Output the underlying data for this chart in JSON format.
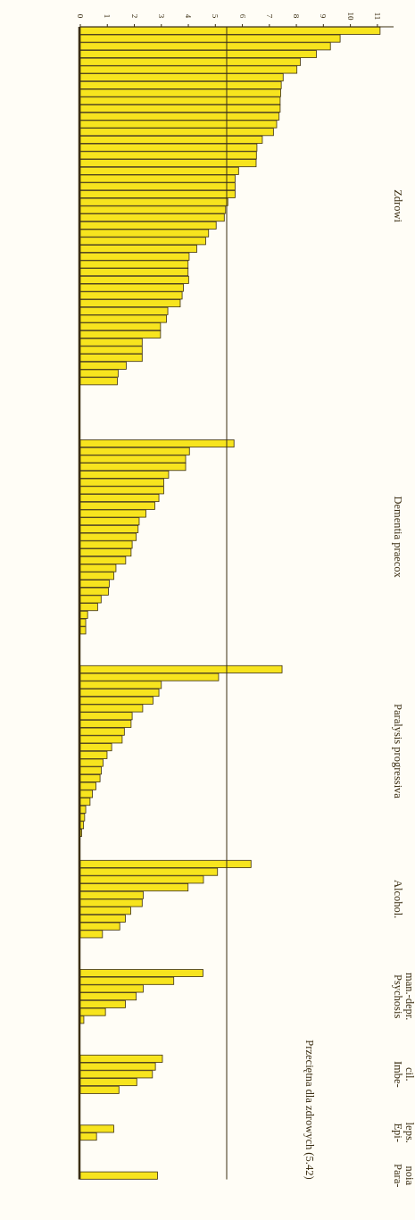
{
  "chart_data": {
    "type": "bar",
    "orientation": "horizontal",
    "stacked": true,
    "xlim": [
      0,
      11.6
    ],
    "xticks": [
      0,
      1,
      2,
      3,
      4,
      5,
      6,
      7,
      8,
      9,
      10,
      11
    ],
    "ref_lines": [
      {
        "axis": "x",
        "value": 5.42,
        "label": "Przeciętna dla zdrowych (5.42)"
      }
    ],
    "categories": [
      null,
      null,
      null,
      null,
      null,
      null,
      null,
      null,
      null,
      null,
      null,
      null,
      null,
      null,
      null,
      null,
      null,
      null,
      null,
      null,
      null,
      null,
      null,
      null,
      null,
      null,
      null,
      null,
      null,
      null,
      null,
      null,
      null,
      null,
      null,
      null,
      null,
      null,
      null,
      null,
      null,
      null,
      null,
      null,
      null,
      null,
      null,
      null,
      null,
      null,
      null,
      null,
      null,
      null,
      null,
      null,
      null,
      null,
      null,
      null,
      null,
      null,
      null,
      null,
      null,
      null,
      null,
      null,
      null,
      null,
      null,
      null,
      null,
      null,
      null,
      null,
      null,
      null,
      null,
      null,
      null,
      null,
      null,
      null,
      null,
      null,
      null,
      null,
      null,
      null,
      null,
      null,
      null,
      null,
      null,
      null,
      null,
      null,
      null,
      null,
      null,
      null,
      null,
      null,
      null,
      null,
      null,
      null,
      null,
      null,
      null,
      null,
      null,
      null,
      null,
      null,
      null,
      null,
      null,
      null,
      null,
      null,
      null,
      null,
      null,
      null,
      null,
      null,
      null,
      null,
      null,
      null,
      null,
      null,
      null,
      null,
      null,
      null,
      null,
      null,
      null,
      null,
      null,
      null,
      null,
      null,
      null,
      null
    ],
    "series": [
      {
        "name": "Zdrowi",
        "color": "#f7e41e",
        "values": [
          11.1,
          9.62,
          9.26,
          8.74,
          8.15,
          8.02,
          7.51,
          7.44,
          7.42,
          7.4,
          7.4,
          7.36,
          7.27,
          7.15,
          6.74,
          6.54,
          6.52,
          6.51,
          5.86,
          5.73,
          5.73,
          5.73,
          5.46,
          5.38,
          5.33,
          5.03,
          4.75,
          4.64,
          4.31,
          4.03,
          3.99,
          3.99,
          4.01,
          3.82,
          3.77,
          3.7,
          3.24,
          3.19,
          2.97,
          2.97,
          2.29,
          2.29,
          2.29,
          1.7,
          1.4,
          1.37,
          null,
          null,
          null,
          null,
          null,
          null,
          null,
          null,
          null,
          null,
          null,
          null,
          null,
          null,
          null,
          null,
          null,
          null,
          null,
          null,
          null,
          null,
          null,
          null,
          null,
          null,
          null,
          null,
          null,
          null,
          null,
          null,
          null,
          null,
          null,
          null,
          null,
          null,
          null,
          null,
          null,
          null,
          null,
          null,
          null,
          null,
          null,
          null,
          null,
          null,
          null,
          null,
          null,
          null,
          null,
          null,
          null,
          null,
          null,
          null,
          null,
          null,
          null,
          null,
          null,
          null,
          null,
          null,
          null,
          null,
          null,
          null,
          null,
          null,
          null,
          null,
          null,
          null,
          null,
          null,
          null,
          null,
          null,
          null,
          null,
          null,
          null,
          null,
          null,
          null,
          null,
          null,
          null,
          null,
          null,
          null,
          null,
          null,
          null,
          null,
          null,
          null
        ]
      },
      {
        "name": "Dementia praecox",
        "color": "#f7e41e",
        "values": [
          null,
          null,
          null,
          null,
          null,
          null,
          null,
          null,
          null,
          null,
          null,
          null,
          null,
          null,
          null,
          null,
          null,
          null,
          null,
          null,
          null,
          null,
          null,
          null,
          null,
          null,
          null,
          null,
          null,
          null,
          null,
          null,
          null,
          null,
          null,
          null,
          null,
          null,
          null,
          null,
          null,
          null,
          null,
          null,
          null,
          null,
          null,
          null,
          null,
          null,
          null,
          null,
          null,
          5.69,
          4.04,
          3.9,
          3.9,
          3.27,
          3.09,
          3.09,
          2.91,
          2.76,
          2.43,
          2.18,
          2.14,
          2.07,
          1.92,
          1.88,
          1.68,
          1.32,
          1.24,
          1.07,
          1.04,
          0.77,
          0.64,
          0.27,
          0.2,
          0.2,
          null,
          null,
          null,
          null,
          null,
          null,
          null,
          null,
          null,
          null,
          null,
          null,
          null,
          null,
          null,
          null,
          null,
          null,
          null,
          null,
          null,
          null,
          null,
          null,
          null,
          null,
          null,
          null,
          null,
          null,
          null,
          null,
          null,
          null,
          null,
          null,
          null,
          null,
          null,
          null,
          null,
          null,
          null,
          null,
          null,
          null,
          null,
          null,
          null,
          null,
          null,
          null,
          null,
          null,
          null,
          null,
          null,
          null,
          null,
          null,
          null,
          null,
          null,
          null,
          null,
          null,
          null,
          null,
          null,
          null
        ]
      },
      {
        "name": "Paralysis progressiva",
        "color": "#f7e41e",
        "values": [
          null,
          null,
          null,
          null,
          null,
          null,
          null,
          null,
          null,
          null,
          null,
          null,
          null,
          null,
          null,
          null,
          null,
          null,
          null,
          null,
          null,
          null,
          null,
          null,
          null,
          null,
          null,
          null,
          null,
          null,
          null,
          null,
          null,
          null,
          null,
          null,
          null,
          null,
          null,
          null,
          null,
          null,
          null,
          null,
          null,
          null,
          null,
          null,
          null,
          null,
          null,
          null,
          null,
          null,
          null,
          null,
          null,
          null,
          null,
          null,
          null,
          null,
          null,
          null,
          null,
          null,
          null,
          null,
          null,
          null,
          null,
          null,
          null,
          null,
          null,
          null,
          null,
          null,
          null,
          null,
          null,
          null,
          7.47,
          5.12,
          3.0,
          2.91,
          2.69,
          2.31,
          1.92,
          1.88,
          1.63,
          1.55,
          1.16,
          0.99,
          0.84,
          0.78,
          0.73,
          0.58,
          0.45,
          0.36,
          0.2,
          0.16,
          0.12,
          0.05,
          null,
          null,
          null,
          null,
          null,
          null,
          null,
          null,
          null,
          null,
          null,
          null,
          null,
          null,
          null,
          null,
          null,
          null,
          null,
          null,
          null,
          null,
          null,
          null,
          null,
          null,
          null,
          null,
          null,
          null,
          null,
          null,
          null,
          null,
          null,
          null,
          null,
          null,
          null,
          null,
          null,
          null,
          null,
          null
        ]
      },
      {
        "name": "Alcohol.",
        "color": "#f7e41e",
        "values": [
          null,
          null,
          null,
          null,
          null,
          null,
          null,
          null,
          null,
          null,
          null,
          null,
          null,
          null,
          null,
          null,
          null,
          null,
          null,
          null,
          null,
          null,
          null,
          null,
          null,
          null,
          null,
          null,
          null,
          null,
          null,
          null,
          null,
          null,
          null,
          null,
          null,
          null,
          null,
          null,
          null,
          null,
          null,
          null,
          null,
          null,
          null,
          null,
          null,
          null,
          null,
          null,
          null,
          null,
          null,
          null,
          null,
          null,
          null,
          null,
          null,
          null,
          null,
          null,
          null,
          null,
          null,
          null,
          null,
          null,
          null,
          null,
          null,
          null,
          null,
          null,
          null,
          null,
          null,
          null,
          null,
          null,
          null,
          null,
          null,
          null,
          null,
          null,
          null,
          null,
          null,
          null,
          null,
          null,
          null,
          null,
          null,
          null,
          null,
          null,
          null,
          null,
          null,
          null,
          null,
          null,
          null,
          6.32,
          5.08,
          4.56,
          3.99,
          2.33,
          2.29,
          1.87,
          1.67,
          1.46,
          0.82,
          null,
          null,
          null,
          null,
          null,
          null,
          null,
          null,
          null,
          null,
          null,
          null,
          null,
          null,
          null,
          null,
          null,
          null,
          null,
          null,
          null,
          null,
          null,
          null,
          null,
          null,
          null,
          null,
          null,
          null,
          null
        ]
      },
      {
        "name": "Psychosis\nman.-depr.",
        "color": "#f7e41e",
        "values": [
          null,
          null,
          null,
          null,
          null,
          null,
          null,
          null,
          null,
          null,
          null,
          null,
          null,
          null,
          null,
          null,
          null,
          null,
          null,
          null,
          null,
          null,
          null,
          null,
          null,
          null,
          null,
          null,
          null,
          null,
          null,
          null,
          null,
          null,
          null,
          null,
          null,
          null,
          null,
          null,
          null,
          null,
          null,
          null,
          null,
          null,
          null,
          null,
          null,
          null,
          null,
          null,
          null,
          null,
          null,
          null,
          null,
          null,
          null,
          null,
          null,
          null,
          null,
          null,
          null,
          null,
          null,
          null,
          null,
          null,
          null,
          null,
          null,
          null,
          null,
          null,
          null,
          null,
          null,
          null,
          null,
          null,
          null,
          null,
          null,
          null,
          null,
          null,
          null,
          null,
          null,
          null,
          null,
          null,
          null,
          null,
          null,
          null,
          null,
          null,
          null,
          null,
          null,
          null,
          null,
          null,
          null,
          null,
          null,
          null,
          null,
          null,
          null,
          null,
          null,
          null,
          null,
          null,
          null,
          null,
          null,
          4.54,
          3.46,
          2.33,
          2.07,
          1.67,
          0.93,
          0.13,
          null,
          null,
          null,
          null,
          null,
          null,
          null,
          null,
          null,
          null,
          null,
          null,
          null,
          null,
          null,
          null,
          null,
          null,
          null,
          null
        ]
      },
      {
        "name": "Imbe-\ncil.",
        "color": "#f7e41e",
        "values": [
          null,
          null,
          null,
          null,
          null,
          null,
          null,
          null,
          null,
          null,
          null,
          null,
          null,
          null,
          null,
          null,
          null,
          null,
          null,
          null,
          null,
          null,
          null,
          null,
          null,
          null,
          null,
          null,
          null,
          null,
          null,
          null,
          null,
          null,
          null,
          null,
          null,
          null,
          null,
          null,
          null,
          null,
          null,
          null,
          null,
          null,
          null,
          null,
          null,
          null,
          null,
          null,
          null,
          null,
          null,
          null,
          null,
          null,
          null,
          null,
          null,
          null,
          null,
          null,
          null,
          null,
          null,
          null,
          null,
          null,
          null,
          null,
          null,
          null,
          null,
          null,
          null,
          null,
          null,
          null,
          null,
          null,
          null,
          null,
          null,
          null,
          null,
          null,
          null,
          null,
          null,
          null,
          null,
          null,
          null,
          null,
          null,
          null,
          null,
          null,
          null,
          null,
          null,
          null,
          null,
          null,
          null,
          null,
          null,
          null,
          null,
          null,
          null,
          null,
          null,
          null,
          null,
          null,
          null,
          null,
          null,
          null,
          null,
          null,
          null,
          null,
          null,
          null,
          null,
          null,
          null,
          null,
          3.04,
          2.78,
          2.67,
          2.09,
          1.43,
          null,
          null,
          null,
          null,
          null,
          null,
          null,
          null,
          null,
          null,
          null
        ]
      },
      {
        "name": "Epi-\nleps.",
        "color": "#f7e41e",
        "values": [
          null,
          null,
          null,
          null,
          null,
          null,
          null,
          null,
          null,
          null,
          null,
          null,
          null,
          null,
          null,
          null,
          null,
          null,
          null,
          null,
          null,
          null,
          null,
          null,
          null,
          null,
          null,
          null,
          null,
          null,
          null,
          null,
          null,
          null,
          null,
          null,
          null,
          null,
          null,
          null,
          null,
          null,
          null,
          null,
          null,
          null,
          null,
          null,
          null,
          null,
          null,
          null,
          null,
          null,
          null,
          null,
          null,
          null,
          null,
          null,
          null,
          null,
          null,
          null,
          null,
          null,
          null,
          null,
          null,
          null,
          null,
          null,
          null,
          null,
          null,
          null,
          null,
          null,
          null,
          null,
          null,
          null,
          null,
          null,
          null,
          null,
          null,
          null,
          null,
          null,
          null,
          null,
          null,
          null,
          null,
          null,
          null,
          null,
          null,
          null,
          null,
          null,
          null,
          null,
          null,
          null,
          null,
          null,
          null,
          null,
          null,
          null,
          null,
          null,
          null,
          null,
          null,
          null,
          null,
          null,
          null,
          null,
          null,
          null,
          null,
          null,
          null,
          null,
          null,
          null,
          null,
          null,
          null,
          null,
          null,
          null,
          null,
          null,
          null,
          null,
          null,
          1.24,
          0.6,
          null,
          null,
          null,
          null,
          null
        ]
      },
      {
        "name": "Para-\nnoia",
        "color": "#f7e41e",
        "values": [
          null,
          null,
          null,
          null,
          null,
          null,
          null,
          null,
          null,
          null,
          null,
          null,
          null,
          null,
          null,
          null,
          null,
          null,
          null,
          null,
          null,
          null,
          null,
          null,
          null,
          null,
          null,
          null,
          null,
          null,
          null,
          null,
          null,
          null,
          null,
          null,
          null,
          null,
          null,
          null,
          null,
          null,
          null,
          null,
          null,
          null,
          null,
          null,
          null,
          null,
          null,
          null,
          null,
          null,
          null,
          null,
          null,
          null,
          null,
          null,
          null,
          null,
          null,
          null,
          null,
          null,
          null,
          null,
          null,
          null,
          null,
          null,
          null,
          null,
          null,
          null,
          null,
          null,
          null,
          null,
          null,
          null,
          null,
          null,
          null,
          null,
          null,
          null,
          null,
          null,
          null,
          null,
          null,
          null,
          null,
          null,
          null,
          null,
          null,
          null,
          null,
          null,
          null,
          null,
          null,
          null,
          null,
          null,
          null,
          null,
          null,
          null,
          null,
          null,
          null,
          null,
          null,
          null,
          null,
          null,
          null,
          null,
          null,
          null,
          null,
          null,
          null,
          null,
          null,
          null,
          null,
          null,
          null,
          null,
          null,
          null,
          null,
          null,
          null,
          null,
          null,
          null,
          null,
          null,
          null,
          null,
          null,
          2.86
        ]
      }
    ]
  }
}
